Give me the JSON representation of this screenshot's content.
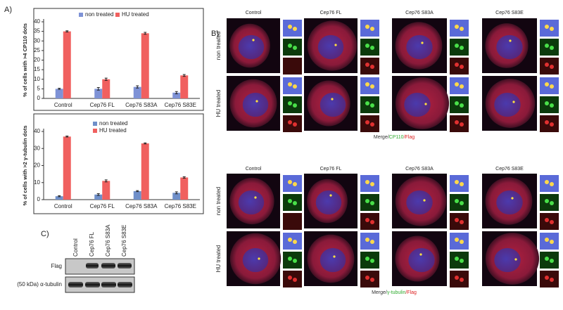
{
  "panel_labels": [
    "A)",
    "B)",
    "C)"
  ],
  "chart_data": [
    {
      "type": "bar",
      "ylabel": "% of cells with >4 CP110 dots",
      "categories": [
        "Control",
        "Cep76 FL",
        "Cep76 S83A",
        "Cep76 S83E"
      ],
      "series": [
        {
          "name": "non treated",
          "color": "#7e92d6",
          "values": [
            5,
            5,
            6,
            3
          ],
          "errors": [
            0.3,
            0.7,
            0.6,
            0.6
          ]
        },
        {
          "name": "HU treated",
          "color": "#f0605f",
          "values": [
            35,
            10,
            34,
            12
          ],
          "errors": [
            0.3,
            0.6,
            0.5,
            0.5
          ]
        }
      ],
      "ylim": [
        0,
        40
      ],
      "yticks": [
        0,
        5,
        10,
        15,
        20,
        25,
        30,
        35,
        40
      ],
      "grid": false,
      "legend": "top"
    },
    {
      "type": "bar",
      "ylabel": "% of cells with >2 γ-tubulin dots",
      "categories": [
        "Control",
        "Cep76 FL",
        "Cep76 S83A",
        "Cep76 S83E"
      ],
      "series": [
        {
          "name": "non treated",
          "color": "#6f8fc9",
          "values": [
            2,
            3,
            5,
            4
          ],
          "errors": [
            0.3,
            0.5,
            0.3,
            0.6
          ]
        },
        {
          "name": "HU treated",
          "color": "#f0605f",
          "values": [
            37,
            11,
            33,
            13
          ],
          "errors": [
            0.3,
            0.6,
            0.3,
            0.4
          ]
        }
      ],
      "ylim": [
        0,
        40
      ],
      "yticks": [
        0,
        10,
        20,
        30,
        40
      ],
      "grid": false,
      "legend": "top"
    }
  ],
  "microscopy": [
    {
      "columns": [
        "Control",
        "Cep76 FL",
        "Cep76 S83A",
        "Cep76 S83E"
      ],
      "rows": [
        "non treated",
        "HU treated"
      ],
      "caption": [
        "Merge/",
        "CP110",
        "/Flag"
      ]
    },
    {
      "columns": [
        "Control",
        "Cep76 FL",
        "Cep76 S83A",
        "Cep76 S83E"
      ],
      "rows": [
        "non treated",
        "HU treated"
      ],
      "caption": [
        "Merge/",
        "γ-tubulin",
        "/Flag"
      ]
    }
  ],
  "blot": {
    "lanes": [
      "Control",
      "Cep76 FL",
      "Cep76 S83A",
      "Cep76 S83E"
    ],
    "rows": [
      "Flag",
      "(50 kDa) α-tubulin"
    ]
  }
}
